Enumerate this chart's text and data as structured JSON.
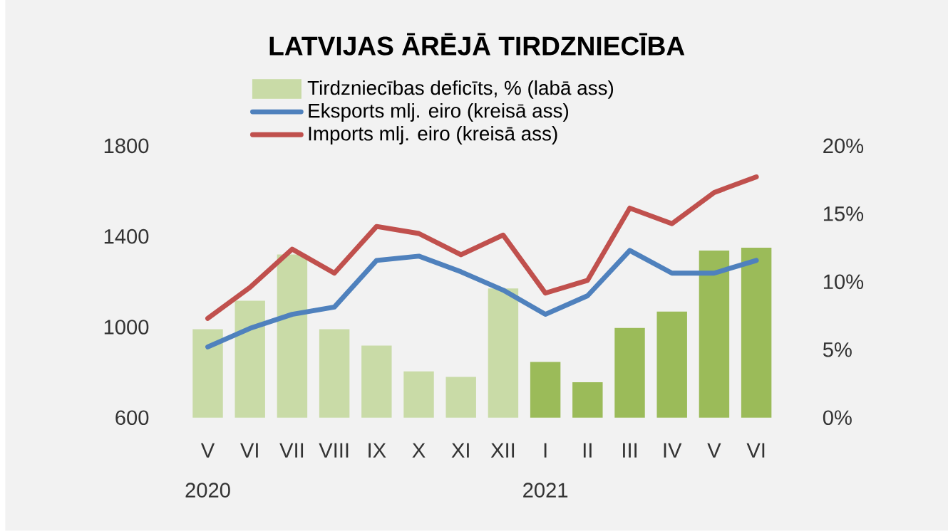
{
  "chart_data": {
    "type": "bar",
    "title": "LATVIJAS ĀRĒJĀ TIRDZNIECĪBA",
    "categories": [
      "V",
      "VI",
      "VII",
      "VIII",
      "IX",
      "X",
      "XI",
      "XII",
      "I",
      "II",
      "III",
      "IV",
      "V",
      "VI"
    ],
    "series": [
      {
        "name": "Tirdzniecības deficīts, % (labā ass)",
        "axis": "y2",
        "colors": [
          "#c9dba7",
          "#c9dba7",
          "#c9dba7",
          "#c9dba7",
          "#c9dba7",
          "#c9dba7",
          "#c9dba7",
          "#c9dba7",
          "#9bbb59",
          "#9bbb59",
          "#9bbb59",
          "#9bbb59",
          "#9bbb59",
          "#9bbb59"
        ],
        "values": [
          6.5,
          8.6,
          12.0,
          6.5,
          5.3,
          3.4,
          3.0,
          9.5,
          4.1,
          2.6,
          6.6,
          7.8,
          12.3,
          12.5
        ]
      },
      {
        "name": "Eksports mlj. eiro (kreisā ass)",
        "type": "line",
        "color": "#4f81bd",
        "values": [
          912,
          994,
          1056,
          1088,
          1294,
          1313,
          1244,
          1163,
          1056,
          1138,
          1338,
          1238,
          1238,
          1294
        ]
      },
      {
        "name": "Imports mlj. eiro (kreisā ass)",
        "type": "line",
        "color": "#c0504d",
        "values": [
          1038,
          1175,
          1344,
          1238,
          1444,
          1413,
          1319,
          1406,
          1150,
          1206,
          1525,
          1456,
          1594,
          1663
        ]
      }
    ],
    "ylim": [
      600,
      1800
    ],
    "yticks": [
      600,
      1000,
      1400,
      1800
    ],
    "y2lim": [
      0,
      20
    ],
    "y2ticks": [
      {
        "value": 0,
        "label": "0%"
      },
      {
        "value": 5,
        "label": "5%"
      },
      {
        "value": 10,
        "label": "10%"
      },
      {
        "value": 15,
        "label": "15%"
      },
      {
        "value": 20,
        "label": "20%"
      }
    ],
    "annotations": [
      "2020",
      "2021"
    ],
    "legend": "top",
    "grid": false
  }
}
